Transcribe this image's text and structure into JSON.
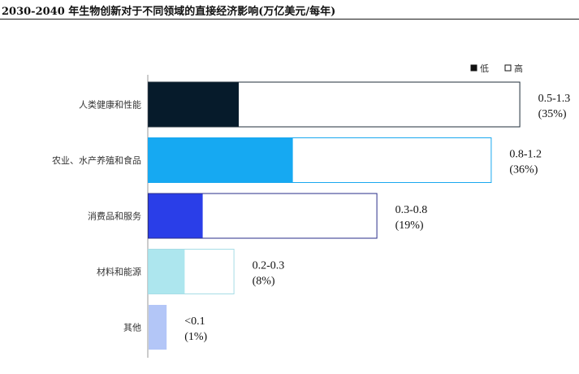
{
  "title": "2030-2040 年生物创新对于不同领域的直接经济影响(万亿美元/每年)",
  "chart_data": {
    "type": "bar",
    "orientation": "horizontal",
    "stacked_range": true,
    "legend": [
      {
        "name": "低",
        "marker": "filled"
      },
      {
        "name": "高",
        "marker": "hollow"
      }
    ],
    "legend_position": "top-right",
    "categories": [
      "人类健康和性能",
      "农业、水产养殖和食品",
      "消费品和服务",
      "材料和能源",
      "其他"
    ],
    "low": [
      0.5,
      0.8,
      0.3,
      0.2,
      0.1
    ],
    "high": [
      1.3,
      1.2,
      0.8,
      0.3,
      0.1
    ],
    "value_labels": [
      "0.5-1.3",
      "0.8-1.2",
      "0.3-0.8",
      "0.2-0.3",
      "<0.1"
    ],
    "share_labels": [
      "(35%)",
      "(36%)",
      "(19%)",
      "(8%)",
      "(1%)"
    ],
    "colors": [
      "#061b2b",
      "#16a9f2",
      "#2a3ee8",
      "#ade6ee",
      "#b3c6f7"
    ],
    "high_border_colors": [
      "#1f2d3a",
      "#1aa8ef",
      "#2a2e8a",
      "#a6dde6",
      "#b3c6f7"
    ],
    "xlim": [
      0,
      1.5
    ]
  }
}
